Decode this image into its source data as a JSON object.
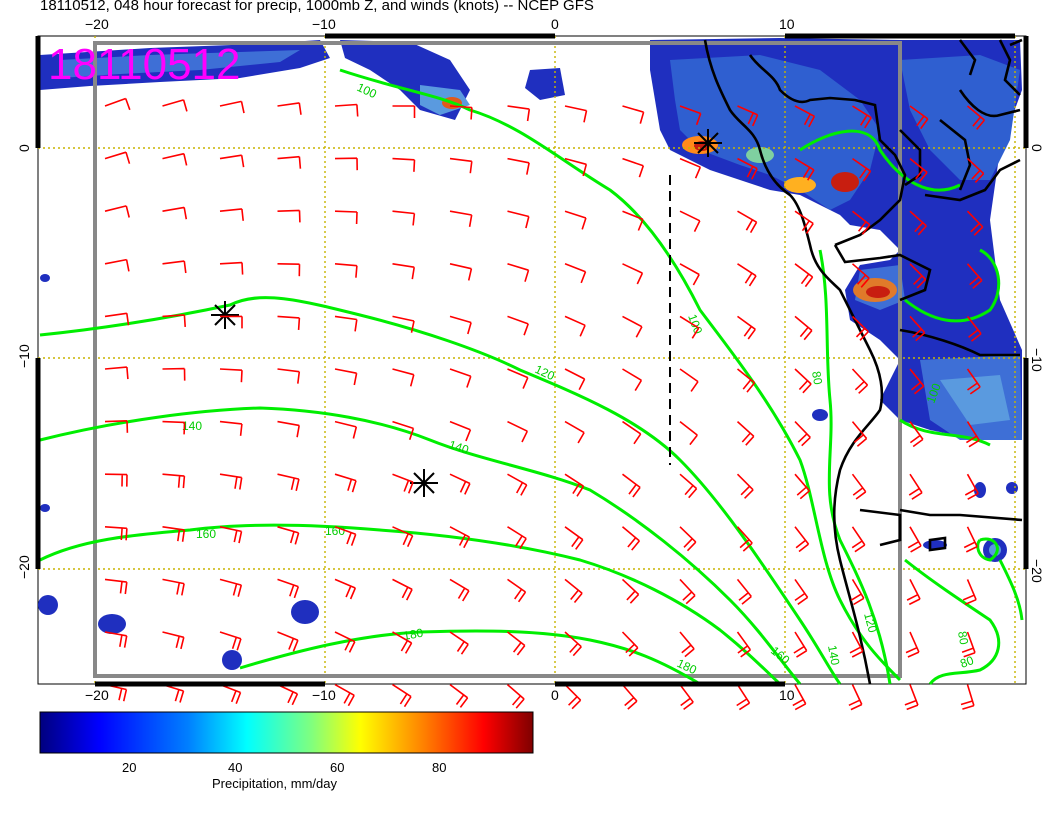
{
  "title": "18110512, 048 hour forecast for precip, 1000mb Z, and winds (knots) -- NCEP GFS",
  "date_stamp": "18110512",
  "axes": {
    "top_ticks": [
      "−20",
      "−10",
      "0",
      "10"
    ],
    "bottom_ticks": [
      "−20",
      "−10",
      "0",
      "10"
    ],
    "left_ticks": [
      "0",
      "−10",
      "−20"
    ],
    "right_ticks": [
      "0",
      "−10",
      "−20"
    ]
  },
  "contour_labels": [
    "100",
    "100",
    "120",
    "140",
    "140",
    "160",
    "160",
    "160",
    "180",
    "180",
    "120",
    "140",
    "100",
    "80",
    "80",
    "80"
  ],
  "colorbar": {
    "label": "Precipitation, mm/day",
    "ticks": [
      "20",
      "40",
      "60",
      "80"
    ],
    "colors": [
      "#00007f",
      "#0000ff",
      "#007fff",
      "#00ffff",
      "#7fff7f",
      "#ffff00",
      "#ff7f00",
      "#ff0000",
      "#7f0000"
    ]
  },
  "colors": {
    "contour": "#00ee00",
    "wind_barb": "#ff0000",
    "grid": "#c8b400",
    "coastline": "#000000",
    "stamp": "#ff00ff"
  }
}
